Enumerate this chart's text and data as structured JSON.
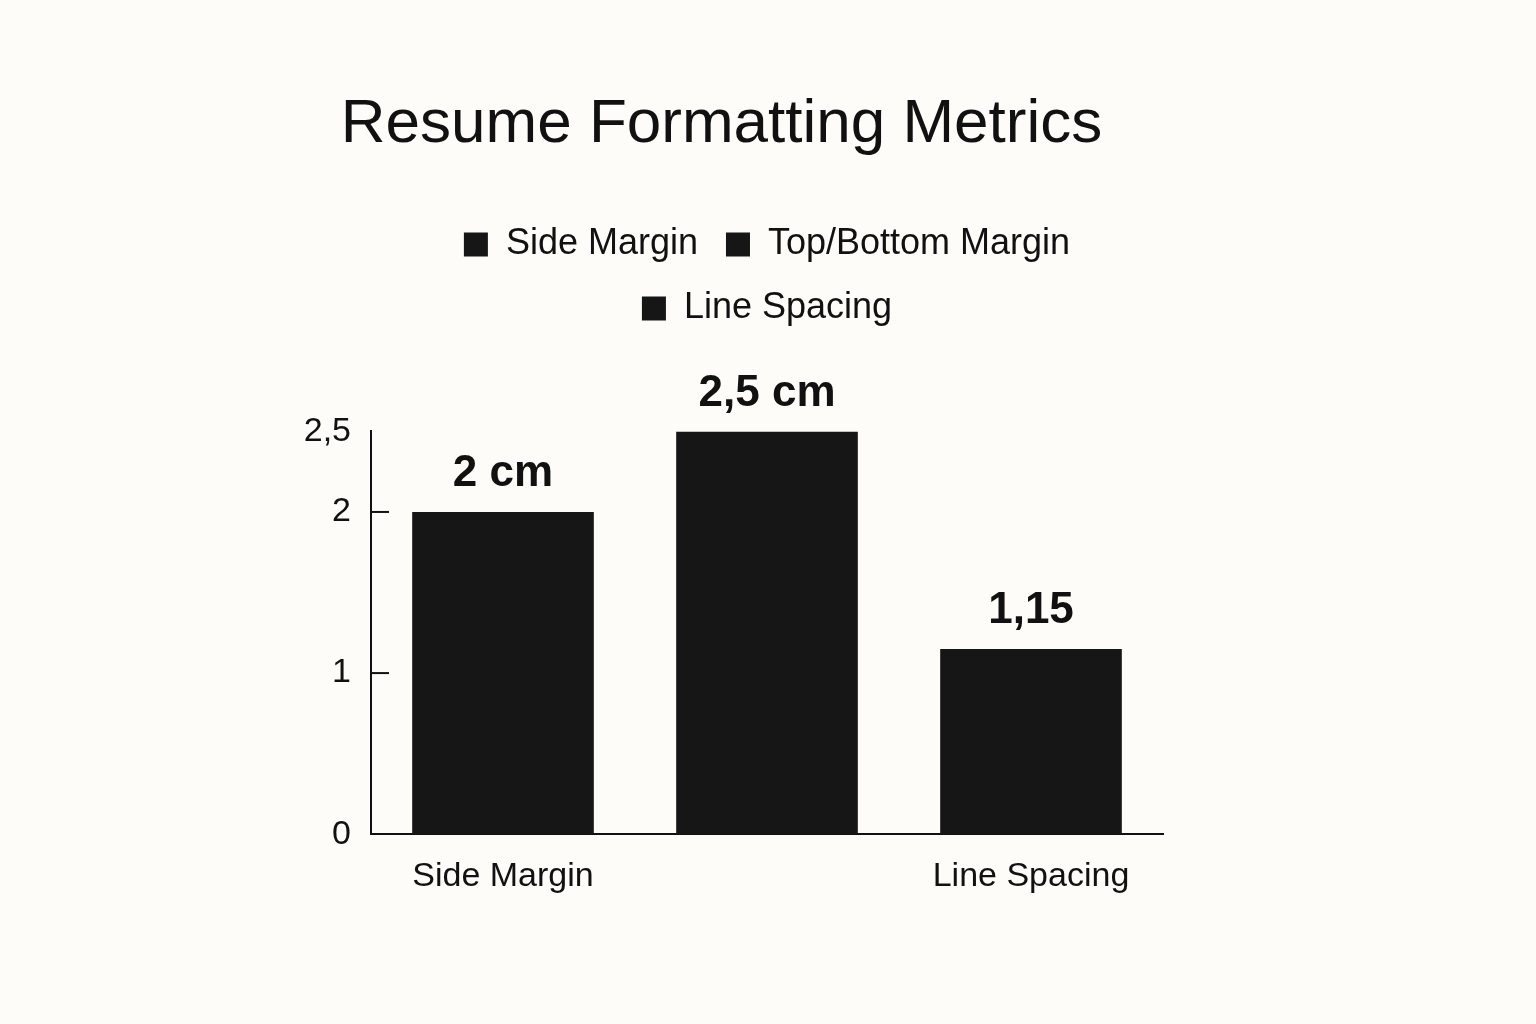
{
  "chart_data": {
    "type": "bar",
    "title": "Resume Formatting Metrics",
    "categories": [
      "Side Margin",
      null,
      "Line Spacing"
    ],
    "series": [
      {
        "name": "Side Margin",
        "color": "#161616",
        "values": [
          2,
          null,
          null
        ],
        "value_labels": [
          "2 cm",
          null,
          null
        ]
      },
      {
        "name": "Top/Bottom Margin",
        "color": "#161616",
        "values": [
          null,
          2.5,
          null
        ],
        "value_labels": [
          null,
          "2,5 cm",
          null
        ]
      },
      {
        "name": "Line Spacing",
        "color": "#161616",
        "values": [
          null,
          null,
          1.15
        ],
        "value_labels": [
          null,
          null,
          "1,15"
        ]
      }
    ],
    "ylim": [
      0,
      2.5
    ],
    "yticks": [
      0,
      1,
      2,
      {
        "value": 2.5,
        "label": "2,5"
      }
    ],
    "legend": "top",
    "grid": false
  }
}
